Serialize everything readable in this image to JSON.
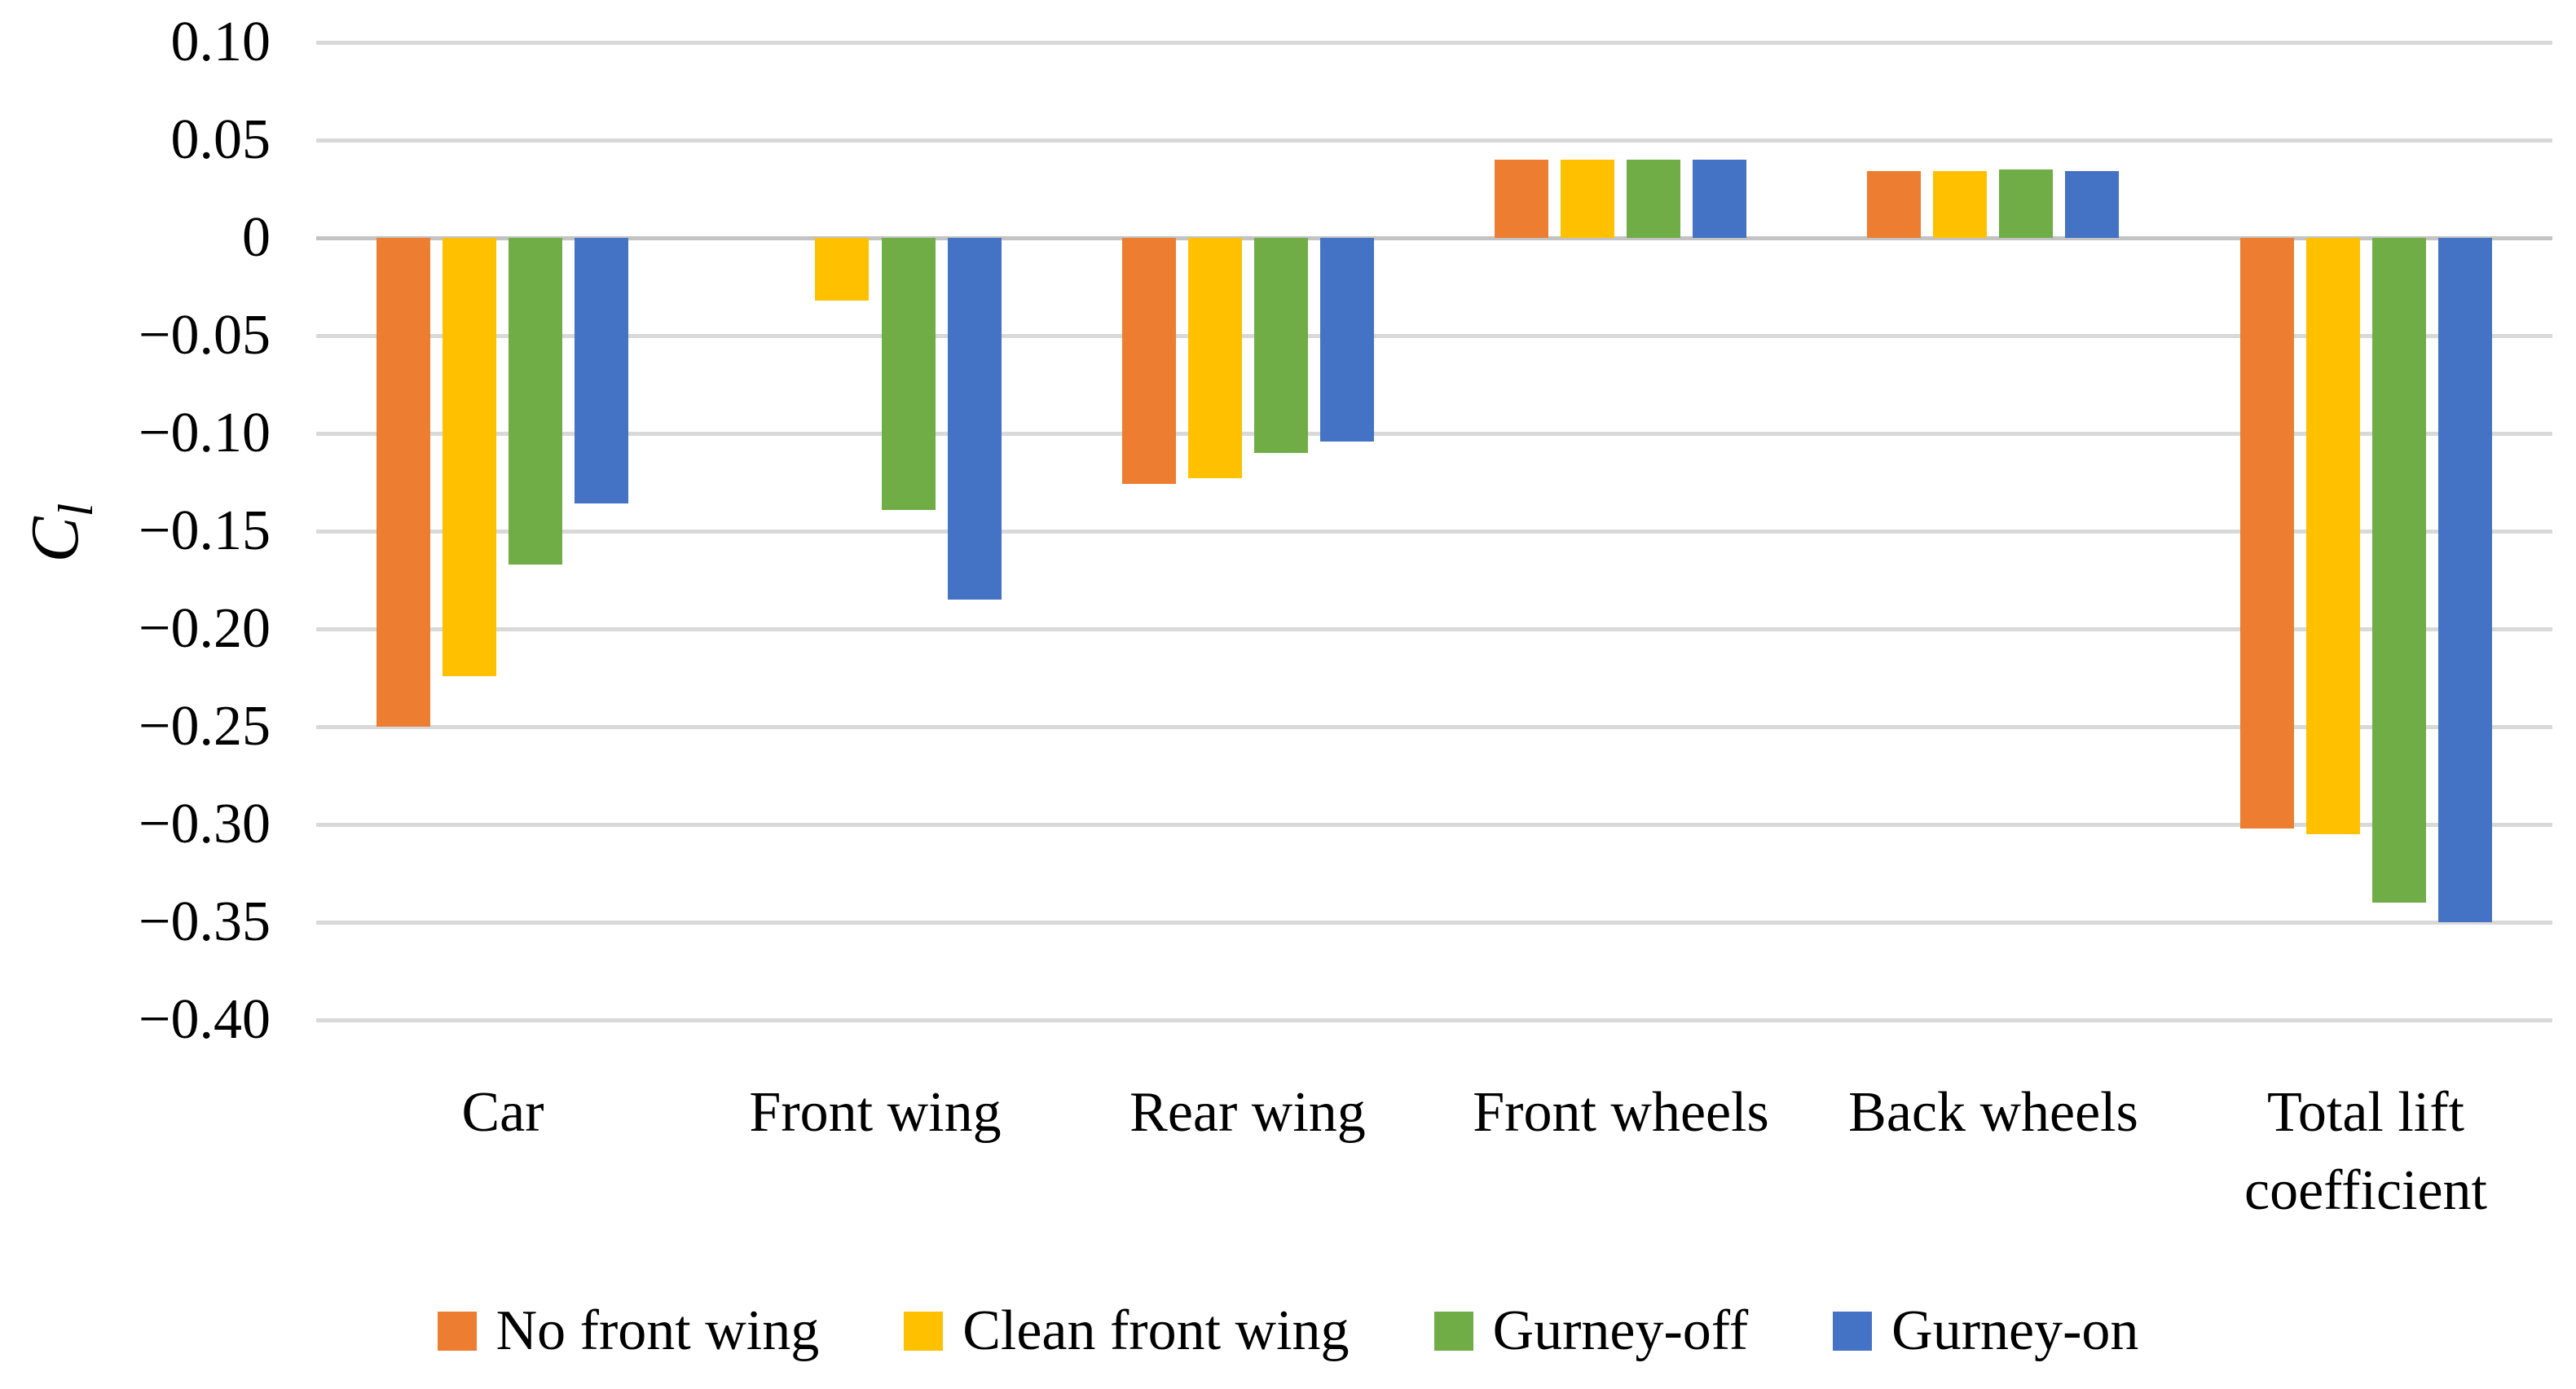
{
  "chart_data": {
    "type": "bar",
    "title": "",
    "ylabel_main": "C",
    "ylabel_sub": "l",
    "categories": [
      "Car",
      "Front wing",
      "Rear wing",
      "Front wheels",
      "Back wheels",
      "Total lift coefficient"
    ],
    "series": [
      {
        "name": "No front wing",
        "color": "#ED7D31",
        "values": [
          -0.25,
          0.0,
          -0.126,
          0.04,
          0.034,
          -0.302
        ]
      },
      {
        "name": "Clean front wing",
        "color": "#FFC000",
        "values": [
          -0.224,
          -0.032,
          -0.123,
          0.04,
          0.034,
          -0.305
        ]
      },
      {
        "name": "Gurney-off",
        "color": "#70AD47",
        "values": [
          -0.167,
          -0.139,
          -0.11,
          0.04,
          0.035,
          -0.34
        ]
      },
      {
        "name": "Gurney-on",
        "color": "#4472C4",
        "values": [
          -0.136,
          -0.185,
          -0.104,
          0.04,
          0.034,
          -0.35
        ]
      }
    ],
    "ylim": [
      -0.4,
      0.1
    ],
    "ytick_step": 0.05,
    "ytick_labels": [
      "0.10",
      "0.05",
      "0",
      "−0.05",
      "−0.10",
      "−0.15",
      "−0.20",
      "−0.25",
      "−0.30",
      "−0.35",
      "−0.40"
    ],
    "grid": true,
    "legend_position": "bottom"
  },
  "colors": {
    "gridline": "#d9d9d9",
    "zero_axis_line": "#c3c3c3",
    "text": "#000000",
    "background": "#ffffff"
  }
}
